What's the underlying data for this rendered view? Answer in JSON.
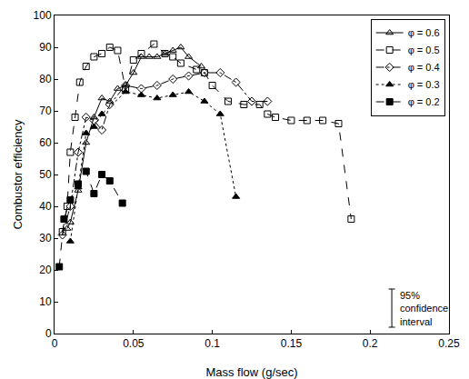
{
  "chart_data": {
    "type": "line",
    "x_label": "Mass flow (g/sec)",
    "y_label": "Combustor efficiency",
    "xlim": [
      0,
      0.25
    ],
    "xticks": [
      0,
      0.05,
      0.1,
      0.15,
      0.2,
      0.25
    ],
    "ylim": [
      0,
      100
    ],
    "yticks": [
      0,
      10,
      20,
      30,
      40,
      50,
      60,
      70,
      80,
      90,
      100
    ],
    "grid": false,
    "legend": "upper right",
    "series": [
      {
        "name": "φ = 0.6",
        "color": "#000000",
        "marker": "triangle-open",
        "line_style": "solid",
        "x": [
          0.008,
          0.01,
          0.015,
          0.02,
          0.025,
          0.03,
          0.035,
          0.04,
          0.045,
          0.05,
          0.055,
          0.06,
          0.065,
          0.07,
          0.075,
          0.08,
          0.085,
          0.093
        ],
        "values": [
          33,
          35,
          45,
          60,
          68,
          74,
          73,
          77,
          78,
          82,
          87,
          87,
          87,
          88,
          89,
          90,
          87,
          84
        ]
      },
      {
        "name": "φ = 0.5",
        "color": "#000000",
        "marker": "square-open",
        "line_style": "dash",
        "x": [
          0.005,
          0.008,
          0.01,
          0.013,
          0.016,
          0.02,
          0.025,
          0.03,
          0.035,
          0.04,
          0.045,
          0.05,
          0.055,
          0.063,
          0.07,
          0.075,
          0.08,
          0.09,
          0.095,
          0.1,
          0.11,
          0.12,
          0.13,
          0.135,
          0.14,
          0.15,
          0.16,
          0.17,
          0.18,
          0.188
        ],
        "values": [
          32,
          40,
          57,
          68,
          79,
          84,
          87,
          88,
          90,
          89,
          77,
          86,
          88,
          91,
          88,
          87,
          85,
          83,
          82,
          78,
          73,
          72,
          72,
          69,
          68,
          67,
          67,
          67,
          66,
          36
        ]
      },
      {
        "name": "φ = 0.4",
        "color": "#000000",
        "marker": "diamond-open",
        "line_style": "dashdot",
        "x": [
          0.005,
          0.01,
          0.015,
          0.02,
          0.025,
          0.03,
          0.035,
          0.045,
          0.055,
          0.065,
          0.075,
          0.085,
          0.095,
          0.105,
          0.115,
          0.125,
          0.135
        ],
        "values": [
          31,
          40,
          57,
          68,
          67,
          64,
          72,
          78,
          77,
          78,
          80,
          81,
          82,
          82,
          79,
          73,
          73
        ]
      },
      {
        "name": "φ = 0.3",
        "color": "#000000",
        "marker": "triangle",
        "line_style": "dot",
        "x": [
          0.01,
          0.015,
          0.02,
          0.025,
          0.03,
          0.045,
          0.055,
          0.065,
          0.075,
          0.085,
          0.095,
          0.105,
          0.115
        ],
        "values": [
          29,
          46,
          63,
          65,
          69,
          76,
          75,
          74,
          75,
          76,
          73,
          69,
          43
        ]
      },
      {
        "name": "φ = 0.2",
        "color": "#000000",
        "marker": "square",
        "line_style": "dash",
        "x": [
          0.003,
          0.006,
          0.01,
          0.015,
          0.02,
          0.025,
          0.03,
          0.035,
          0.043
        ],
        "values": [
          21,
          36,
          42,
          47,
          51,
          44,
          50,
          48,
          41
        ]
      }
    ],
    "confidence_interval": {
      "label": [
        "95%",
        "confidence",
        "interval"
      ],
      "low": 2,
      "high": 14
    }
  }
}
